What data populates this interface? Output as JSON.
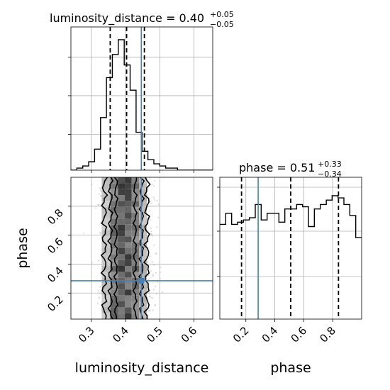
{
  "chart_data": [
    {
      "type": "histogram",
      "panel": "luminosity_distance-marginal",
      "title_param": "luminosity_distance",
      "title_value": "0.40",
      "title_plus": "+0.05",
      "title_minus": "−0.05",
      "xlim": [
        0.24,
        0.655
      ],
      "bins": [
        0.24,
        0.2573,
        0.2747,
        0.292,
        0.3093,
        0.3267,
        0.344,
        0.3613,
        0.3787,
        0.396,
        0.4133,
        0.4307,
        0.448,
        0.4653,
        0.4827,
        0.5,
        0.5173,
        0.5347,
        0.552,
        0.5693,
        0.5867,
        0.604,
        0.6213,
        0.6387,
        0.655
      ],
      "counts": [
        0,
        1,
        2,
        4,
        10,
        25,
        44,
        55,
        62,
        50,
        38,
        18,
        9,
        5,
        3,
        2,
        1,
        1,
        0,
        0,
        0,
        0,
        0,
        0
      ],
      "quantiles": [
        0.355,
        0.403,
        0.455
      ],
      "truth": 0.446,
      "grid": true
    },
    {
      "type": "histogram",
      "panel": "phase-marginal",
      "title_param": "phase",
      "title_value": "0.51",
      "title_plus": "+0.33",
      "title_minus": "−0.34",
      "xlim": [
        0.02,
        1.0
      ],
      "bins": [
        0.02,
        0.0608,
        0.1017,
        0.1425,
        0.1833,
        0.2242,
        0.265,
        0.3058,
        0.3467,
        0.3875,
        0.4283,
        0.4692,
        0.51,
        0.5508,
        0.5917,
        0.6325,
        0.6733,
        0.7142,
        0.7558,
        0.7958,
        0.8367,
        0.8775,
        0.9183,
        0.9592,
        1.0
      ],
      "counts": [
        43,
        48,
        43,
        44,
        45,
        46,
        52,
        45,
        48,
        48,
        44,
        50,
        50,
        52,
        51,
        42,
        50,
        52,
        54,
        56,
        55,
        52,
        47,
        37
      ],
      "quantiles": [
        0.17,
        0.51,
        0.84
      ],
      "truth": 0.285,
      "grid": true
    },
    {
      "type": "scatter-contour",
      "panel": "luminosity_distance-vs-phase",
      "xlim": [
        0.24,
        0.655
      ],
      "ylim": [
        0.02,
        1.0
      ],
      "truth": {
        "x": 0.446,
        "y": 0.285
      },
      "grid": true
    }
  ],
  "axes": {
    "x_labels": {
      "luminosity_distance": "luminosity_distance",
      "phase": "phase"
    },
    "y_label": "phase",
    "ld_ticks": [
      "0.3",
      "0.4",
      "0.5",
      "0.6"
    ],
    "ld_tick_values": [
      0.3,
      0.4,
      0.5,
      0.6
    ],
    "phase_ticks": [
      "0.2",
      "0.4",
      "0.6",
      "0.8"
    ],
    "phase_tick_values": [
      0.2,
      0.4,
      0.6,
      0.8
    ]
  },
  "colors": {
    "truth": "#4682b4",
    "hist": "#000000",
    "grid": "#b0b0b0"
  }
}
